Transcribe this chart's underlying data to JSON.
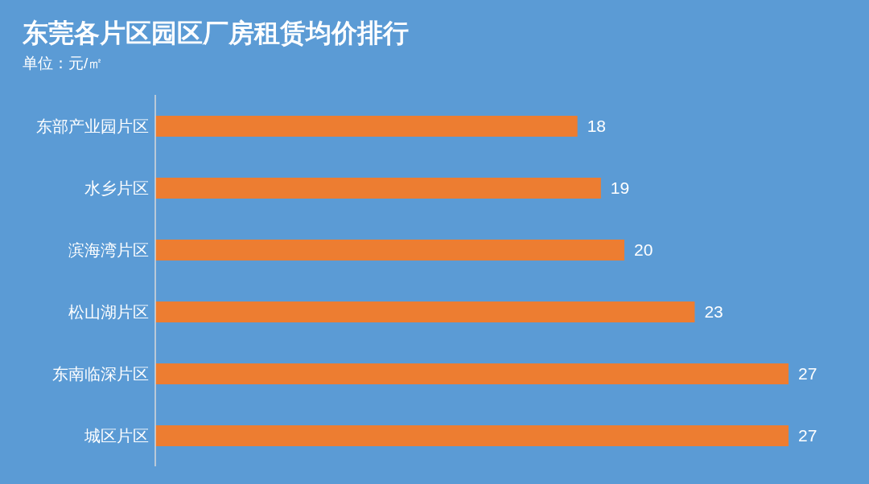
{
  "chart_data": {
    "type": "bar",
    "orientation": "horizontal",
    "title": "东莞各片区园区厂房租赁均价排行",
    "subtitle": "单位：元/㎡",
    "categories": [
      "东部产业园片区",
      "水乡片区",
      "滨海湾片区",
      "松山湖片区",
      "东南临深片区",
      "城区片区"
    ],
    "values": [
      18,
      19,
      20,
      23,
      27,
      27
    ],
    "color": "#ed7d31",
    "data_labels": true,
    "grid": false,
    "legend": false
  }
}
